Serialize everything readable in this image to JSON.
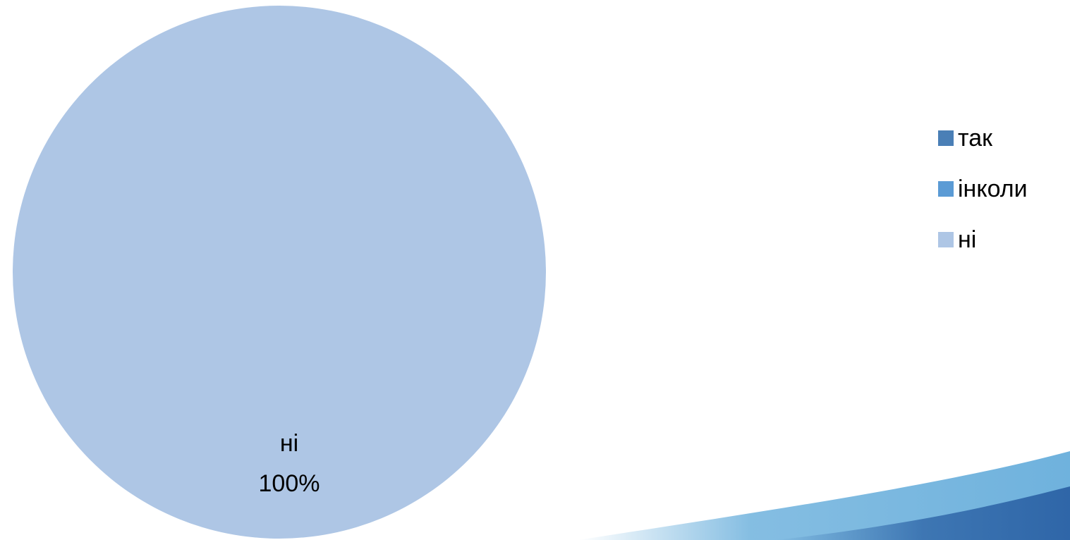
{
  "chart_data": {
    "type": "pie",
    "title": "",
    "categories": [
      "так",
      "інколи",
      "ні"
    ],
    "values": [
      0,
      0,
      100
    ],
    "unit": "%",
    "colors": [
      "#4a7fb6",
      "#5b9bd5",
      "#aec6e5"
    ],
    "data_labels": [
      {
        "category": "ні",
        "percent": "100%"
      }
    ],
    "legend_position": "right"
  },
  "decoration": {
    "swoosh_colors": [
      "#2f66a8",
      "#6fb2dd"
    ]
  }
}
